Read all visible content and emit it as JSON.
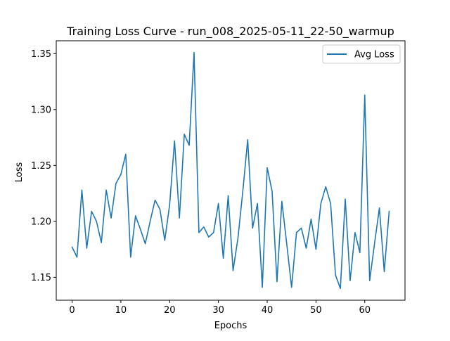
{
  "chart_data": {
    "type": "line",
    "title": "Training Loss Curve - run_008_2025-05-11_22-50_warmup",
    "xlabel": "Epochs",
    "ylabel": "Loss",
    "xlim": [
      -3.25,
      68.25
    ],
    "ylim": [
      1.1295,
      1.3615
    ],
    "xticks": [
      0,
      10,
      20,
      30,
      40,
      50,
      60
    ],
    "yticks": [
      1.15,
      1.2,
      1.25,
      1.3,
      1.35
    ],
    "ytick_labels": [
      "1.15",
      "1.20",
      "1.25",
      "1.30",
      "1.35"
    ],
    "grid": false,
    "legend_position": "top-right",
    "line_color": "#1f77b4",
    "series": [
      {
        "name": "Avg Loss",
        "x": [
          0,
          1,
          2,
          3,
          4,
          5,
          6,
          7,
          8,
          9,
          10,
          11,
          12,
          13,
          14,
          15,
          16,
          17,
          18,
          19,
          20,
          21,
          22,
          23,
          24,
          25,
          26,
          27,
          28,
          29,
          30,
          31,
          32,
          33,
          34,
          35,
          36,
          37,
          38,
          39,
          40,
          41,
          42,
          43,
          44,
          45,
          46,
          47,
          48,
          49,
          50,
          51,
          52,
          53,
          54,
          55,
          56,
          57,
          58,
          59,
          60,
          61,
          62,
          63,
          64,
          65
        ],
        "y": [
          1.177,
          1.168,
          1.228,
          1.176,
          1.209,
          1.2,
          1.181,
          1.228,
          1.203,
          1.234,
          1.242,
          1.26,
          1.168,
          1.205,
          1.193,
          1.18,
          1.2,
          1.219,
          1.211,
          1.183,
          1.215,
          1.272,
          1.203,
          1.278,
          1.268,
          1.351,
          1.19,
          1.195,
          1.186,
          1.19,
          1.216,
          1.167,
          1.223,
          1.156,
          1.185,
          1.227,
          1.273,
          1.194,
          1.216,
          1.141,
          1.248,
          1.227,
          1.146,
          1.218,
          1.18,
          1.141,
          1.19,
          1.194,
          1.176,
          1.202,
          1.175,
          1.216,
          1.231,
          1.216,
          1.152,
          1.14,
          1.22,
          1.147,
          1.19,
          1.172,
          1.313,
          1.147,
          1.18,
          1.212,
          1.155,
          1.209
        ]
      }
    ]
  }
}
